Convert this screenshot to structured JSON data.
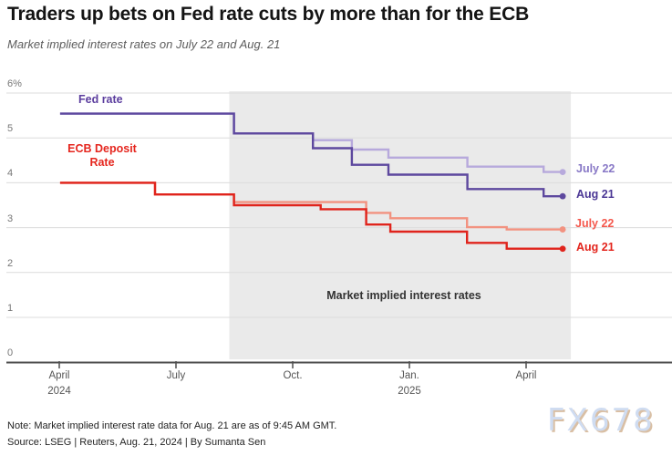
{
  "header": {
    "title": "Traders up bets on Fed rate cuts by more than for the ECB",
    "subtitle": "Market implied interest rates on July 22 and Aug. 21"
  },
  "curve_labels": {
    "fed": "Fed rate",
    "ecb_line1": "ECB Deposit",
    "ecb_line2": "Rate",
    "fed_color": "#5b3d9e",
    "ecb_color": "#e5261e"
  },
  "annotation": "Market implied interest rates",
  "notes": {
    "line1": "Note: Market implied interest rate data for Aug. 21 are as of 9:45 AM GMT.",
    "line2": "Source: LSEG | Reuters, Aug. 21, 2024 | By Sumanta Sen"
  },
  "watermark": "FX678",
  "chart_data": {
    "type": "line",
    "step": true,
    "title": "Market implied interest rates on July 22 and Aug. 21",
    "x_axis": {
      "unit": "months since April 2024",
      "ticks": [
        {
          "m": 0,
          "label": "April",
          "year": "2024"
        },
        {
          "m": 3,
          "label": "July",
          "year": ""
        },
        {
          "m": 6,
          "label": "Oct.",
          "year": ""
        },
        {
          "m": 9,
          "label": "Jan.",
          "year": "2025"
        },
        {
          "m": 12,
          "label": "April",
          "year": ""
        }
      ]
    },
    "y_axis": {
      "min": 0,
      "max": 6,
      "ticks": [
        {
          "v": 6,
          "label": "6%"
        },
        {
          "v": 5,
          "label": "5"
        },
        {
          "v": 4,
          "label": "4"
        },
        {
          "v": 3,
          "label": "3"
        },
        {
          "v": 2,
          "label": "2"
        },
        {
          "v": 1,
          "label": "1"
        },
        {
          "v": 0,
          "label": "0"
        }
      ]
    },
    "shaded_region": {
      "from_m": 4.37,
      "to_m": 13.15
    },
    "series": [
      {
        "id": "fed_jul22",
        "name": "Fed rate — July 22",
        "label": "July 22",
        "color": "#b7a9dc",
        "label_color": "#8878c6",
        "end_m": 12.94,
        "points": [
          [
            0.02,
            5.54
          ],
          [
            4.49,
            5.1
          ],
          [
            6.52,
            4.95
          ],
          [
            7.52,
            4.74
          ],
          [
            8.46,
            4.56
          ],
          [
            10.49,
            4.36
          ],
          [
            12.45,
            4.24
          ]
        ]
      },
      {
        "id": "ecb_jul22",
        "name": "ECB deposit rate — July 22",
        "label": "July 22",
        "color": "#f29280",
        "label_color": "#f4584d",
        "end_m": 12.94,
        "points": [
          [
            0.02,
            4.0
          ],
          [
            2.46,
            3.74
          ],
          [
            4.49,
            3.57
          ],
          [
            7.89,
            3.33
          ],
          [
            8.51,
            3.21
          ],
          [
            10.48,
            3.01
          ],
          [
            11.5,
            2.96
          ]
        ]
      },
      {
        "id": "fed_aug21",
        "name": "Fed rate — Aug 21",
        "label": "Aug 21",
        "color": "#5d489e",
        "label_color": "#4b3795",
        "end_m": 12.94,
        "points": [
          [
            0.02,
            5.54
          ],
          [
            4.49,
            5.1
          ],
          [
            6.52,
            4.77
          ],
          [
            7.52,
            4.4
          ],
          [
            8.46,
            4.18
          ],
          [
            10.49,
            3.86
          ],
          [
            12.45,
            3.7
          ]
        ]
      },
      {
        "id": "ecb_aug21",
        "name": "ECB deposit rate — Aug 21",
        "label": "Aug 21",
        "color": "#e0241c",
        "label_color": "#e3251d",
        "end_m": 12.94,
        "points": [
          [
            0.02,
            4.0
          ],
          [
            2.46,
            3.74
          ],
          [
            4.49,
            3.5
          ],
          [
            6.72,
            3.41
          ],
          [
            7.89,
            3.07
          ],
          [
            8.51,
            2.91
          ],
          [
            10.48,
            2.66
          ],
          [
            11.5,
            2.53
          ]
        ]
      }
    ],
    "colors": {
      "grid": "#dcdcdc",
      "axis": "#4d4d4d",
      "shading": "#eaeaea",
      "background": "#ffffff"
    }
  }
}
